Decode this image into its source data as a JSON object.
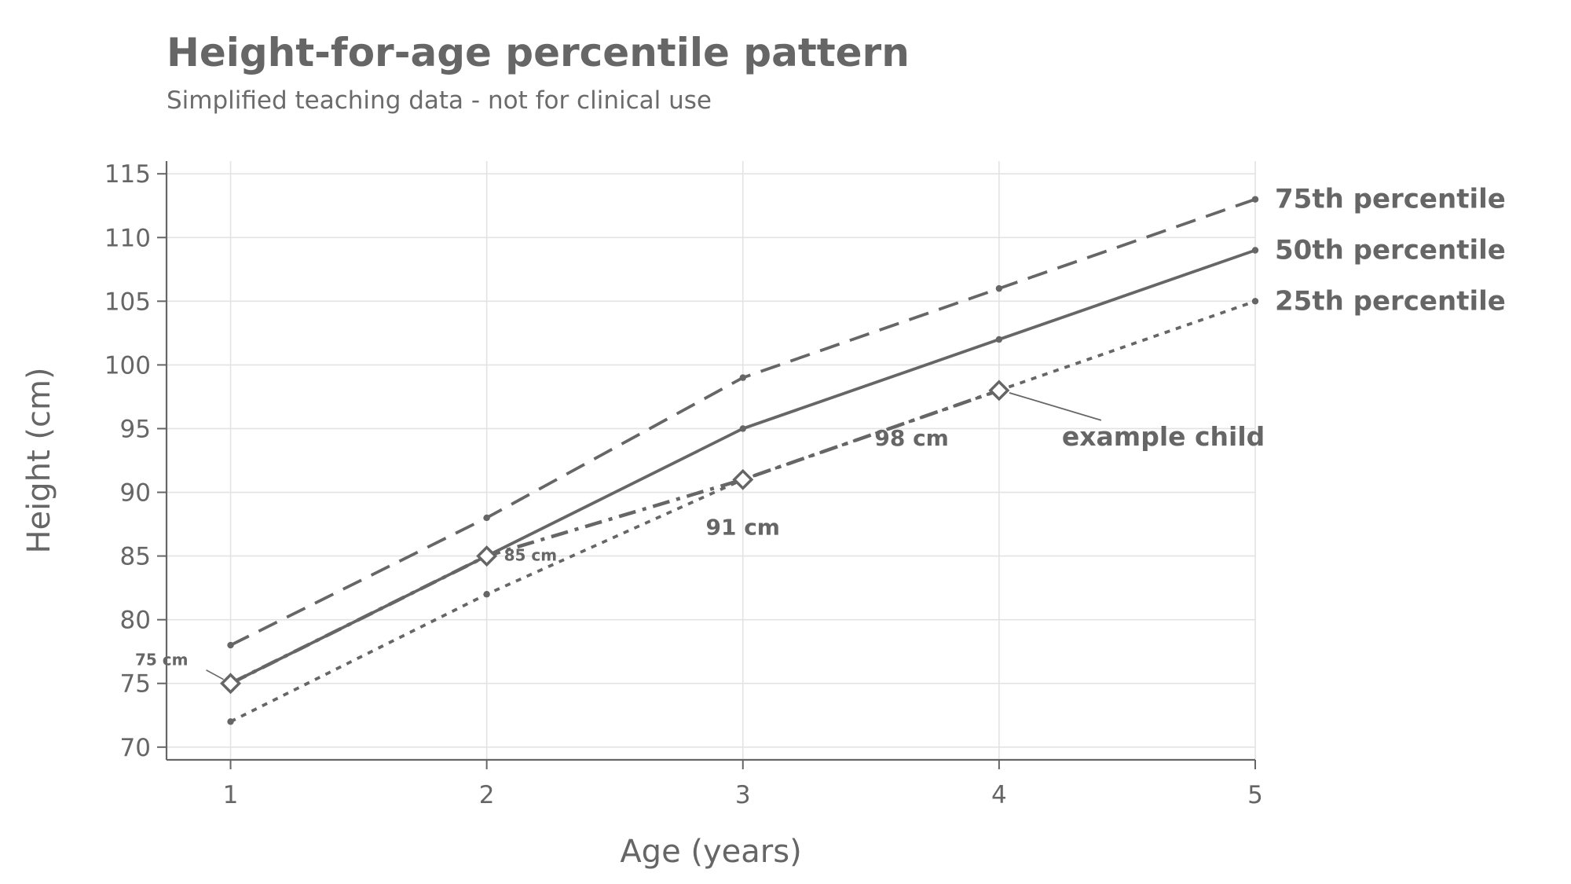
{
  "chart_data": {
    "type": "line",
    "title": "Height-for-age percentile pattern",
    "subtitle": "Simplified teaching data - not for clinical use",
    "xlabel": "Age (years)",
    "ylabel": "Height (cm)",
    "xlim": [
      0.75,
      5
    ],
    "ylim": [
      69,
      116
    ],
    "x_ticks": [
      1,
      2,
      3,
      4,
      5
    ],
    "y_ticks": [
      70,
      75,
      80,
      85,
      90,
      95,
      100,
      105,
      110,
      115
    ],
    "grid": true,
    "legend": "none",
    "series": [
      {
        "name": "75th percentile",
        "style": "dashed",
        "x": [
          1,
          2,
          3,
          4,
          5
        ],
        "values": [
          78,
          88,
          99,
          106,
          113
        ]
      },
      {
        "name": "50th percentile",
        "style": "solid",
        "x": [
          1,
          2,
          3,
          4,
          5
        ],
        "values": [
          75,
          85,
          95,
          102,
          109
        ]
      },
      {
        "name": "25th percentile",
        "style": "dotted",
        "x": [
          1,
          2,
          3,
          4,
          5
        ],
        "values": [
          72,
          82,
          91,
          98,
          105
        ]
      },
      {
        "name": "example child",
        "style": "dashdot",
        "marker": "diamond",
        "x": [
          1,
          2,
          3,
          4
        ],
        "values": [
          75,
          85,
          91,
          98
        ],
        "point_labels": [
          "75 cm",
          "85 cm",
          "91 cm",
          "98 cm"
        ]
      }
    ],
    "colors": {
      "line": "#666666",
      "text": "#666666",
      "grid": "#e3e3e3"
    }
  }
}
